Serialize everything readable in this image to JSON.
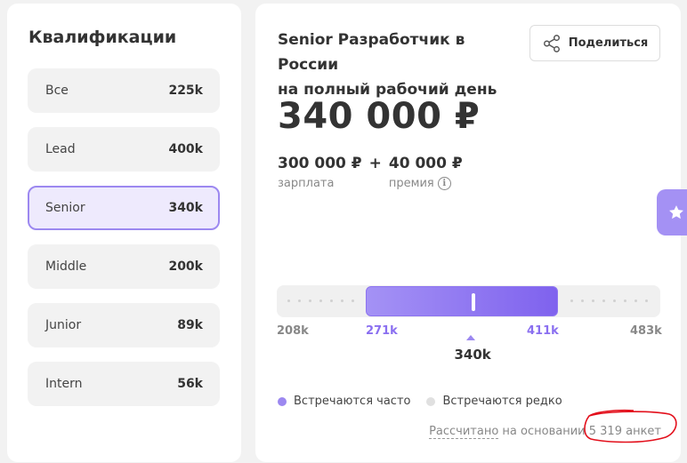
{
  "qualifications": {
    "title": "Квалификации",
    "items": [
      {
        "label": "Все",
        "value": "225k"
      },
      {
        "label": "Lead",
        "value": "400k"
      },
      {
        "label": "Senior",
        "value": "340k"
      },
      {
        "label": "Middle",
        "value": "200k"
      },
      {
        "label": "Junior",
        "value": "89k"
      },
      {
        "label": "Intern",
        "value": "56k"
      }
    ],
    "active_index": 2
  },
  "job": {
    "title_line1": "Senior Разработчик в России",
    "title_line2": "на полный рабочий день",
    "share_label": "Поделиться",
    "total_salary": "340 000 ₽",
    "salary_amount": "300 000 ₽",
    "salary_label": "зарплата",
    "plus": "+",
    "bonus_amount": "40 000 ₽",
    "bonus_label": "премия",
    "info_glyph": "i"
  },
  "range": {
    "min": 208,
    "max": 483,
    "fill_from": 271,
    "fill_to": 411,
    "median": 340,
    "min_label": "208k",
    "fill_from_label": "271k",
    "fill_to_label": "411k",
    "max_label": "483k",
    "median_label": "340k"
  },
  "legend": {
    "frequent_label": "Встречаются часто",
    "frequent_color": "#9c88f0",
    "rare_label": "Встречаются редко",
    "rare_color": "#e0e0e0"
  },
  "basis": {
    "link_text": "Рассчитано",
    "text": " на основании ",
    "count": "5 319 анкет"
  },
  "icons": {
    "share": "share-icon",
    "info": "info-icon",
    "favorite": "star-icon"
  },
  "colors": {
    "accent": "#8a6ff0",
    "accent_light": "#eeeafd",
    "annotation": "#e3101c"
  }
}
